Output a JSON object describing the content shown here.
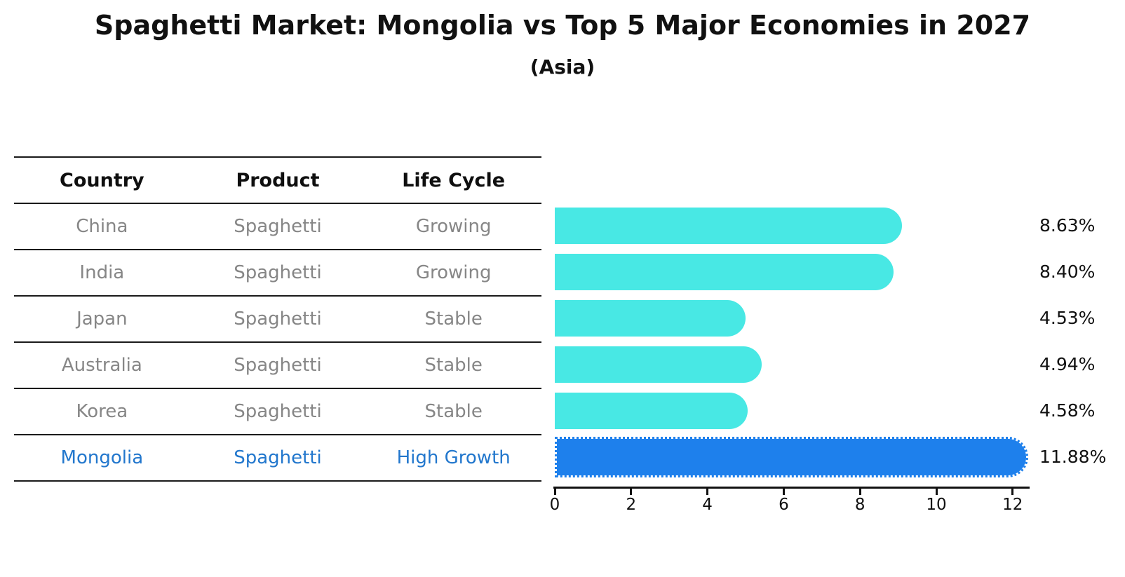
{
  "title": "Spaghetti Market: Mongolia vs Top 5 Major Economies in 2027",
  "subtitle": "(Asia)",
  "table": {
    "headers": [
      "Country",
      "Product",
      "Life Cycle"
    ],
    "rows": [
      {
        "country": "China",
        "product": "Spaghetti",
        "life_cycle": "Growing",
        "highlight": false
      },
      {
        "country": "India",
        "product": "Spaghetti",
        "life_cycle": "Growing",
        "highlight": false
      },
      {
        "country": "Japan",
        "product": "Spaghetti",
        "life_cycle": "Stable",
        "highlight": false
      },
      {
        "country": "Australia",
        "product": "Spaghetti",
        "life_cycle": "Stable",
        "highlight": false
      },
      {
        "country": "Korea",
        "product": "Spaghetti",
        "life_cycle": "Stable",
        "highlight": false
      },
      {
        "country": "Mongolia",
        "product": "Spaghetti",
        "life_cycle": "High Growth",
        "highlight": true
      }
    ]
  },
  "chart_data": {
    "type": "bar",
    "orientation": "horizontal",
    "title": "Spaghetti Market: Mongolia vs Top 5 Major Economies in 2027",
    "subtitle": "(Asia)",
    "categories": [
      "China",
      "India",
      "Japan",
      "Australia",
      "Korea",
      "Mongolia"
    ],
    "values": [
      8.63,
      8.4,
      4.53,
      4.94,
      4.58,
      11.88
    ],
    "value_labels": [
      "8.63%",
      "8.40%",
      "4.53%",
      "4.94%",
      "4.58%",
      "11.88%"
    ],
    "xticks": [
      0,
      2,
      4,
      6,
      8,
      10,
      12
    ],
    "xlim": [
      0,
      12.46
    ],
    "grid": false,
    "legend": false,
    "highlight_index": 5
  },
  "colors": {
    "bar": "#48e8e4",
    "highlight_bar": "#1e80ec",
    "highlight_text": "#2277cd",
    "text": "#111111",
    "muted_text": "#868686"
  }
}
